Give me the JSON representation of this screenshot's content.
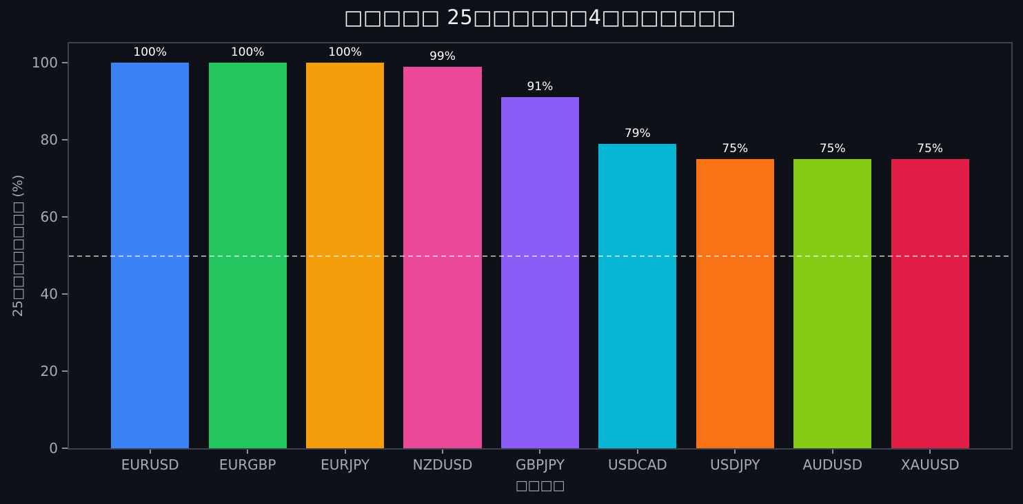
{
  "title": "□□□□□ 25□□□□□□4□□□□□□□",
  "axes": {
    "y_label": "25□□□□□□□□ (%)",
    "x_label": "□□□□",
    "y_ticks": [
      0,
      20,
      40,
      60,
      80,
      100
    ],
    "y_max": 105
  },
  "reference_line": {
    "value": 50,
    "style": "dashed",
    "color": "rgba(255,255,255,0.6)"
  },
  "chart_data": {
    "type": "bar",
    "title": "□□□□□ 25□□□□□□4□□□□□□□",
    "xlabel": "□□□□",
    "ylabel": "25□□□□□□□□ (%)",
    "categories": [
      "EURUSD",
      "EURGBP",
      "EURJPY",
      "NZDUSD",
      "GBPJPY",
      "USDCAD",
      "USDJPY",
      "AUDUSD",
      "XAUUSD"
    ],
    "values": [
      100,
      100,
      100,
      99,
      91,
      79,
      75,
      75,
      75
    ],
    "value_labels": [
      "100%",
      "100%",
      "100%",
      "99%",
      "91%",
      "79%",
      "75%",
      "75%",
      "75%"
    ],
    "bar_colors": [
      "#3b82f6",
      "#22c55e",
      "#f59e0b",
      "#ec4899",
      "#8b5cf6",
      "#06b6d4",
      "#f97316",
      "#84cc16",
      "#e11d48"
    ],
    "ylim": [
      0,
      105
    ],
    "grid": false,
    "legend": null,
    "reference_line_y": 50
  },
  "colors": {
    "background": "#0e1117",
    "plot_border": "#3a4353",
    "tick_text": "#a3adbb",
    "tick_mark": "#8b93a0",
    "title_text": "#f1f3f6",
    "value_label_text": "#ffffff"
  }
}
